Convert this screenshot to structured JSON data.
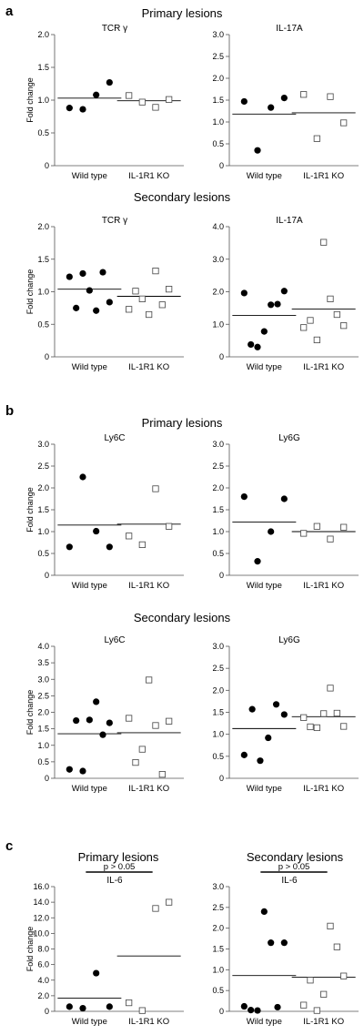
{
  "panels": [
    {
      "letter": "a",
      "sections": [
        {
          "title": "Primary lesions",
          "plots": [
            {
              "title": "TCR γ",
              "ylabel": "Fold change",
              "ylim": [
                0,
                2
              ],
              "ticks": [
                "0",
                "0.5",
                "1.0",
                "1.5",
                "2.0"
              ],
              "groups": [
                {
                  "label": "Wild type",
                  "mean": 1.03,
                  "values": [
                    0.88,
                    0.86,
                    1.08,
                    1.27
                  ]
                },
                {
                  "label": "IL-1R1 KO",
                  "mean": 0.99,
                  "values": [
                    1.07,
                    0.97,
                    0.89,
                    1.01
                  ]
                }
              ]
            },
            {
              "title": "IL-17A",
              "ylabel": "",
              "ylim": [
                0,
                3
              ],
              "ticks": [
                "0",
                "0.5",
                "1.0",
                "1.5",
                "2.0",
                "2.5",
                "3.0"
              ],
              "groups": [
                {
                  "label": "Wild type",
                  "mean": 1.18,
                  "values": [
                    1.47,
                    0.35,
                    1.33,
                    1.55
                  ]
                },
                {
                  "label": "IL-1R1 KO",
                  "mean": 1.21,
                  "values": [
                    1.63,
                    0.62,
                    1.58,
                    0.98
                  ]
                }
              ]
            }
          ]
        },
        {
          "title": "Secondary lesions",
          "plots": [
            {
              "title": "TCR γ",
              "ylabel": "Fold change",
              "ylim": [
                0,
                2
              ],
              "ticks": [
                "0",
                "0.5",
                "1.0",
                "1.5",
                "2.0"
              ],
              "groups": [
                {
                  "label": "Wild type",
                  "mean": 1.04,
                  "values": [
                    1.23,
                    0.75,
                    1.28,
                    1.02,
                    0.71,
                    1.3,
                    0.84
                  ]
                },
                {
                  "label": "IL-1R1 KO",
                  "mean": 0.93,
                  "values": [
                    0.73,
                    1.01,
                    0.89,
                    0.65,
                    1.32,
                    0.8,
                    1.04
                  ]
                }
              ]
            },
            {
              "title": "IL-17A",
              "ylabel": "",
              "ylim": [
                0,
                4
              ],
              "ticks": [
                "0",
                "1.0",
                "2.0",
                "3.0",
                "4.0"
              ],
              "groups": [
                {
                  "label": "Wild type",
                  "mean": 1.27,
                  "values": [
                    1.96,
                    0.38,
                    0.3,
                    0.78,
                    1.6,
                    1.62,
                    2.02
                  ]
                },
                {
                  "label": "IL-1R1 KO",
                  "mean": 1.47,
                  "values": [
                    0.9,
                    1.12,
                    0.52,
                    3.52,
                    1.78,
                    1.3,
                    0.96
                  ]
                }
              ]
            }
          ]
        }
      ]
    },
    {
      "letter": "b",
      "sections": [
        {
          "title": "Primary lesions",
          "plots": [
            {
              "title": "Ly6C",
              "ylabel": "Fold change",
              "ylim": [
                0,
                3
              ],
              "ticks": [
                "0",
                "0.5",
                "1.0",
                "1.5",
                "2.0",
                "2.5",
                "3.0"
              ],
              "groups": [
                {
                  "label": "Wild type",
                  "mean": 1.15,
                  "values": [
                    0.65,
                    2.25,
                    1.01,
                    0.65
                  ]
                },
                {
                  "label": "IL-1R1 KO",
                  "mean": 1.17,
                  "values": [
                    0.9,
                    0.7,
                    1.98,
                    1.12
                  ]
                }
              ]
            },
            {
              "title": "Ly6G",
              "ylabel": "",
              "ylim": [
                0,
                3
              ],
              "ticks": [
                "0",
                "0.5",
                "1.0",
                "1.5",
                "2.0",
                "2.5",
                "3.0"
              ],
              "groups": [
                {
                  "label": "Wild type",
                  "mean": 1.22,
                  "values": [
                    1.8,
                    0.32,
                    1.0,
                    1.75
                  ]
                },
                {
                  "label": "IL-1R1 KO",
                  "mean": 1.0,
                  "values": [
                    0.96,
                    1.12,
                    0.83,
                    1.1
                  ]
                }
              ]
            }
          ]
        },
        {
          "title": "Secondary lesions",
          "plots": [
            {
              "title": "Ly6C",
              "ylabel": "Fold change",
              "ylim": [
                0,
                4
              ],
              "ticks": [
                "0",
                "0.5",
                "1.0",
                "1.5",
                "2.0",
                "2.5",
                "3.0",
                "3.5",
                "4.0"
              ],
              "groups": [
                {
                  "label": "Wild type",
                  "mean": 1.35,
                  "values": [
                    0.27,
                    1.75,
                    0.22,
                    1.77,
                    2.32,
                    1.32,
                    1.68
                  ]
                },
                {
                  "label": "IL-1R1 KO",
                  "mean": 1.38,
                  "values": [
                    1.82,
                    0.48,
                    0.88,
                    2.98,
                    1.6,
                    0.12,
                    1.73
                  ]
                }
              ]
            },
            {
              "title": "Ly6G",
              "ylabel": "",
              "ylim": [
                0,
                3
              ],
              "ticks": [
                "0",
                "0.5",
                "1.0",
                "1.5",
                "2.0",
                "2.5",
                "3.0"
              ],
              "groups": [
                {
                  "label": "Wild type",
                  "mean": 1.13,
                  "values": [
                    0.53,
                    1.57,
                    0.4,
                    0.92,
                    1.68,
                    1.45
                  ]
                },
                {
                  "label": "IL-1R1 KO",
                  "mean": 1.4,
                  "values": [
                    1.38,
                    1.17,
                    1.15,
                    1.47,
                    2.05,
                    1.48,
                    1.18
                  ]
                }
              ]
            }
          ]
        }
      ]
    },
    {
      "letter": "c",
      "sections": [
        {
          "title": "",
          "plots": [
            {
              "header": "Primary lesions",
              "title": "IL-6",
              "ylabel": "Fold change",
              "ylim": [
                0,
                16
              ],
              "ticks": [
                "0",
                "2.0",
                "4.0",
                "6.0",
                "8.0",
                "10.0",
                "12.0",
                "14.0",
                "16.0"
              ],
              "pvalue": "p > 0.05",
              "groups": [
                {
                  "label": "Wild type",
                  "mean": 1.7,
                  "values": [
                    0.6,
                    0.4,
                    4.9,
                    0.6
                  ]
                },
                {
                  "label": "IL-1R1 KO",
                  "mean": 7.1,
                  "values": [
                    1.1,
                    0.1,
                    13.2,
                    14.0
                  ]
                }
              ]
            },
            {
              "header": "Secondary lesions",
              "title": "IL-6",
              "ylabel": "",
              "ylim": [
                0,
                3
              ],
              "ticks": [
                "0",
                "0.5",
                "1.0",
                "1.5",
                "2.0",
                "2.5",
                "3.0"
              ],
              "pvalue": "p > 0.05",
              "groups": [
                {
                  "label": "Wild type",
                  "mean": 0.86,
                  "values": [
                    0.12,
                    0.03,
                    0.02,
                    2.4,
                    1.65,
                    0.1,
                    1.65
                  ]
                },
                {
                  "label": "IL-1R1 KO",
                  "mean": 0.82,
                  "values": [
                    0.15,
                    0.75,
                    0.02,
                    0.41,
                    2.05,
                    1.55,
                    0.85
                  ]
                }
              ]
            }
          ]
        }
      ]
    }
  ]
}
